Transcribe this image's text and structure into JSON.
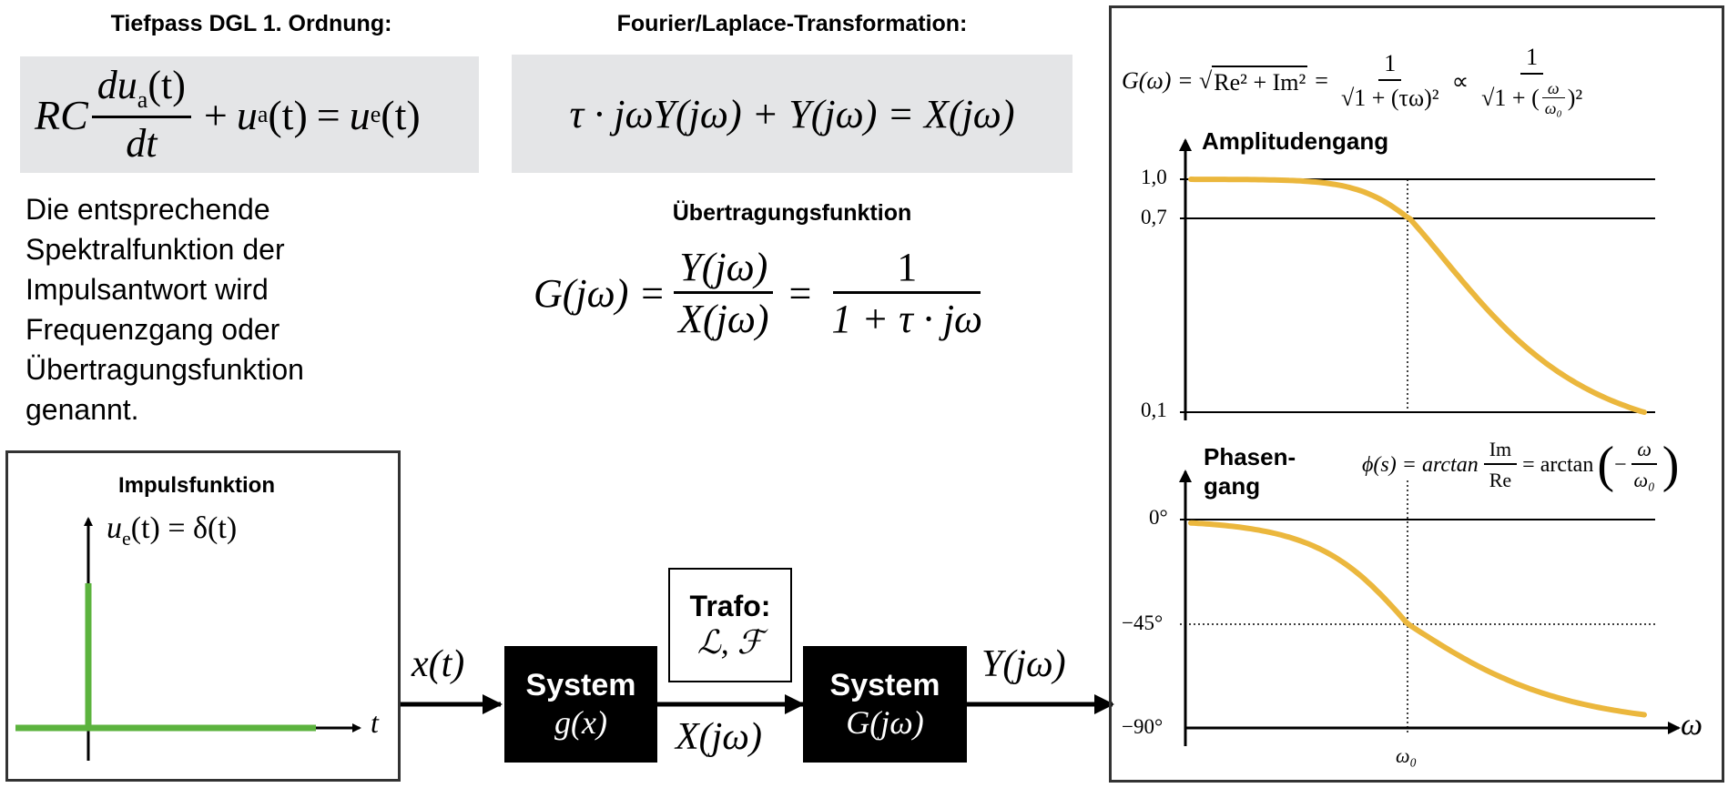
{
  "left": {
    "heading": "Tiefpass DGL 1. Ordnung:",
    "ode": {
      "rc": "RC",
      "du": "du",
      "a": "a",
      "t_paren": "(t)",
      "dt": "dt",
      "plus": "+",
      "u": "u",
      "eq": "=",
      "e": "e"
    },
    "text_lines": [
      "Die entsprechende",
      "Spektralfunktion der",
      "Impulsantwort wird",
      "Frequenzgang oder",
      "Übertragungsfunktion",
      "genannt."
    ]
  },
  "middle": {
    "heading": "Fourier/Laplace-Transformation:",
    "transform_eq": "τ · jωY(jω) + Y(jω) = X(jω)",
    "transfer_heading": "Übertragungsfunktion",
    "transfer": {
      "lhs": "G(jω) =",
      "num1": "Y(jω)",
      "den1": "X(jω)",
      "eq": "=",
      "num2": "1",
      "den2": "1 + τ · jω"
    }
  },
  "impulse": {
    "title": "Impulsfunktion",
    "label": "u",
    "label_sub": "e",
    "label_rest": "(t) = δ(t)",
    "t_axis": "t",
    "colors": {
      "pulse": "#5cb33e"
    }
  },
  "flow": {
    "x_t": "x(t)",
    "system1": {
      "word": "System",
      "fn": "g(x)"
    },
    "trafo": {
      "word": "Trafo:",
      "symbols": "ℒ, ℱ"
    },
    "x_jw": "X(jω)",
    "system2": {
      "word": "System",
      "fn": "G(jω)"
    },
    "y_jw": "Y(jω)"
  },
  "bode": {
    "formula_top": {
      "lhs": "G(ω) = √",
      "under": "Re² + Im²",
      "eq": "=",
      "one": "1",
      "den1": "√1 + (τω)²",
      "prop": "∝",
      "den2a": "√1 + (",
      "w": "ω",
      "w0": "ω₀",
      "den2b": ")²"
    },
    "amp_title": "Amplitudengang",
    "amp_ticks": [
      "1,0",
      "0,7",
      "0,1"
    ],
    "phase_title_1": "Phasen-",
    "phase_title_2": "gang",
    "phase_formula": {
      "lhs": "ϕ(s) = arctan",
      "im": "Im",
      "re": "Re",
      "eq": "= arctan",
      "minus": "−",
      "w": "ω",
      "w0": "ω₀"
    },
    "phase_ticks": [
      "0°",
      "−45°",
      "−90°"
    ],
    "x_tick": "ω₀",
    "x_axis": "ω",
    "colors": {
      "curve": "#ebb73d"
    }
  }
}
